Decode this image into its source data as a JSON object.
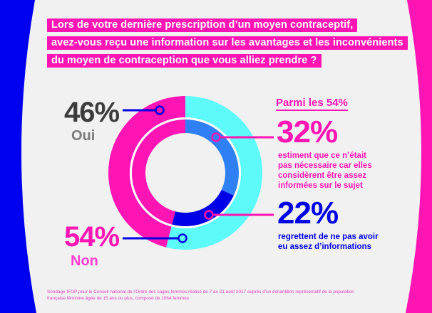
{
  "colors": {
    "background": "#f1f1f2",
    "left_band": "#0000f0",
    "right_band": "#ff14b4",
    "pink": "#ff14b4",
    "cyan": "#5cfaf9",
    "light_blue": "#3080f5",
    "dark_blue": "#0000e6",
    "dark_gray": "#3c3c3c",
    "gray": "#7a7a7a",
    "footnote": "#e040c0"
  },
  "header": {
    "lines": [
      "Lors de votre dernière prescription d’un moyen contraceptif,",
      "avez-vous reçu une information sur les avantages et les inconvénients",
      "du moyen de contraception que vous alliez prendre ?"
    ]
  },
  "left_labels": {
    "oui": {
      "value": "46%",
      "label": "Oui"
    },
    "non": {
      "value": "54%",
      "label": "Non"
    }
  },
  "right_panel": {
    "title": "Parmi les 54%",
    "items": [
      {
        "value": "32%",
        "description": [
          "estiment que ce n’était",
          "pas nécessaire car elles",
          "considèrent être assez",
          "informées sur le sujet"
        ]
      },
      {
        "value": "22%",
        "description": [
          "regrettent de ne pas avoir",
          "eu assez d’informations"
        ]
      }
    ]
  },
  "footnote": {
    "lines": [
      "Sondage IFOP pour le Conseil national de l’Ordre des sages-femmes réalisé du 7 au 21 août 2017 auprès d’un échantillon représentatif de la population",
      "française féminine âgée de 15 ans ou plus, composé de 1064 femmes"
    ]
  },
  "chart_data": {
    "type": "pie",
    "title": "Lors de votre dernière prescription d’un moyen contraceptif, avez-vous reçu une information sur les avantages et les inconvénients du moyen de contraception que vous alliez prendre ?",
    "rings": [
      {
        "name": "outer",
        "slices": [
          {
            "label": "Oui",
            "value": 46,
            "color": "#ff14b4"
          },
          {
            "label": "Non",
            "value": 54,
            "color": "#5cfaf9"
          }
        ]
      },
      {
        "name": "inner",
        "slices": [
          {
            "label": "Oui",
            "value": 46,
            "color": "#ff14b4"
          },
          {
            "label": "Non - estiment que ce n’était pas nécessaire",
            "value": 32,
            "color": "#3080f5"
          },
          {
            "label": "Non - regrettent de ne pas avoir eu assez d’informations",
            "value": 22,
            "color": "#0000e6"
          }
        ]
      }
    ],
    "legend": "none"
  }
}
